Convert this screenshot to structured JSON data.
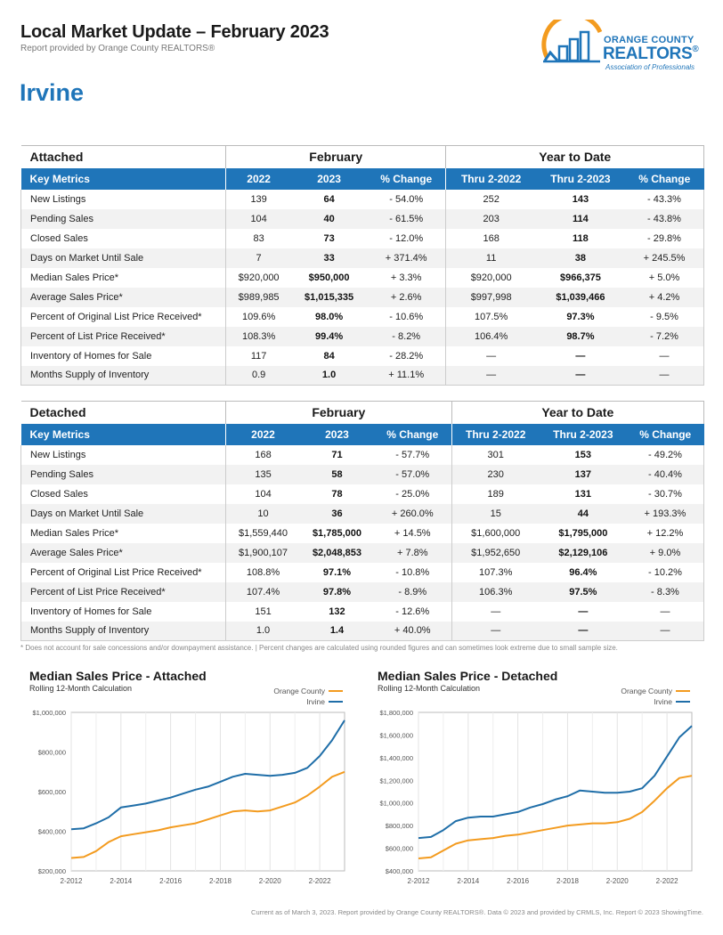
{
  "header": {
    "title": "Local Market Update – February 2023",
    "subtitle": "Report provided by Orange County REALTORS®",
    "city": "Irvine"
  },
  "logo": {
    "line1": "ORANGE COUNTY",
    "line2": "REALTORS",
    "line3": "Association of Professionals",
    "colors": {
      "blue": "#1f75b9",
      "orange": "#f39b1f"
    }
  },
  "tables": [
    {
      "section": "Attached",
      "group_february": "February",
      "group_ytd": "Year to Date",
      "columns": [
        "Key Metrics",
        "2022",
        "2023",
        "% Change",
        "Thru 2-2022",
        "Thru 2-2023",
        "% Change"
      ],
      "rows": [
        [
          "New Listings",
          "139",
          "64",
          "- 54.0%",
          "252",
          "143",
          "- 43.3%"
        ],
        [
          "Pending Sales",
          "104",
          "40",
          "- 61.5%",
          "203",
          "114",
          "- 43.8%"
        ],
        [
          "Closed Sales",
          "83",
          "73",
          "- 12.0%",
          "168",
          "118",
          "- 29.8%"
        ],
        [
          "Days on Market Until Sale",
          "7",
          "33",
          "+ 371.4%",
          "11",
          "38",
          "+ 245.5%"
        ],
        [
          "Median Sales Price*",
          "$920,000",
          "$950,000",
          "+ 3.3%",
          "$920,000",
          "$966,375",
          "+ 5.0%"
        ],
        [
          "Average Sales Price*",
          "$989,985",
          "$1,015,335",
          "+ 2.6%",
          "$997,998",
          "$1,039,466",
          "+ 4.2%"
        ],
        [
          "Percent of Original List Price Received*",
          "109.6%",
          "98.0%",
          "- 10.6%",
          "107.5%",
          "97.3%",
          "- 9.5%"
        ],
        [
          "Percent of List Price Received*",
          "108.3%",
          "99.4%",
          "- 8.2%",
          "106.4%",
          "98.7%",
          "- 7.2%"
        ],
        [
          "Inventory of Homes for Sale",
          "117",
          "84",
          "- 28.2%",
          "—",
          "—",
          "—"
        ],
        [
          "Months Supply of Inventory",
          "0.9",
          "1.0",
          "+ 11.1%",
          "—",
          "—",
          "—"
        ]
      ]
    },
    {
      "section": "Detached",
      "group_february": "February",
      "group_ytd": "Year to Date",
      "columns": [
        "Key Metrics",
        "2022",
        "2023",
        "% Change",
        "Thru 2-2022",
        "Thru 2-2023",
        "% Change"
      ],
      "rows": [
        [
          "New Listings",
          "168",
          "71",
          "- 57.7%",
          "301",
          "153",
          "- 49.2%"
        ],
        [
          "Pending Sales",
          "135",
          "58",
          "- 57.0%",
          "230",
          "137",
          "- 40.4%"
        ],
        [
          "Closed Sales",
          "104",
          "78",
          "- 25.0%",
          "189",
          "131",
          "- 30.7%"
        ],
        [
          "Days on Market Until Sale",
          "10",
          "36",
          "+ 260.0%",
          "15",
          "44",
          "+ 193.3%"
        ],
        [
          "Median Sales Price*",
          "$1,559,440",
          "$1,785,000",
          "+ 14.5%",
          "$1,600,000",
          "$1,795,000",
          "+ 12.2%"
        ],
        [
          "Average Sales Price*",
          "$1,900,107",
          "$2,048,853",
          "+ 7.8%",
          "$1,952,650",
          "$2,129,106",
          "+ 9.0%"
        ],
        [
          "Percent of Original List Price Received*",
          "108.8%",
          "97.1%",
          "- 10.8%",
          "107.3%",
          "96.4%",
          "- 10.2%"
        ],
        [
          "Percent of List Price Received*",
          "107.4%",
          "97.8%",
          "- 8.9%",
          "106.3%",
          "97.5%",
          "- 8.3%"
        ],
        [
          "Inventory of Homes for Sale",
          "151",
          "132",
          "- 12.6%",
          "—",
          "—",
          "—"
        ],
        [
          "Months Supply of Inventory",
          "1.0",
          "1.4",
          "+ 40.0%",
          "—",
          "—",
          "—"
        ]
      ]
    }
  ],
  "footnote": "* Does not account for sale concessions and/or downpayment assistance.  |  Percent changes are calculated using rounded figures and can sometimes look extreme due to small sample size.",
  "footer": "Current as of March 3, 2023. Report provided by Orange County REALTORS®. Data © 2023 and provided by CRMLS, Inc. Report © 2023 ShowingTime.",
  "chart_data": [
    {
      "type": "line",
      "title": "Median Sales Price - Attached",
      "subtitle": "Rolling 12-Month Calculation",
      "x_ticks": [
        "2-2012",
        "2-2014",
        "2-2016",
        "2-2018",
        "2-2020",
        "2-2022"
      ],
      "x": [
        2012.0,
        2012.5,
        2013.0,
        2013.5,
        2014.0,
        2014.5,
        2015.0,
        2015.5,
        2016.0,
        2016.5,
        2017.0,
        2017.5,
        2018.0,
        2018.5,
        2019.0,
        2019.5,
        2020.0,
        2020.5,
        2021.0,
        2021.5,
        2022.0,
        2022.5,
        2023.0
      ],
      "y_ticks": [
        "$200,000",
        "$400,000",
        "$600,000",
        "$800,000",
        "$1,000,000"
      ],
      "ylim": [
        200000,
        1000000
      ],
      "grid": true,
      "legend_position": "top-right",
      "series": [
        {
          "name": "Orange County",
          "color": "#f39b1f",
          "values": [
            265000,
            270000,
            300000,
            345000,
            375000,
            385000,
            395000,
            405000,
            420000,
            430000,
            440000,
            460000,
            480000,
            500000,
            505000,
            500000,
            505000,
            525000,
            545000,
            580000,
            625000,
            675000,
            700000
          ]
        },
        {
          "name": "Irvine",
          "color": "#1f6ea8",
          "values": [
            410000,
            415000,
            440000,
            470000,
            520000,
            530000,
            540000,
            555000,
            570000,
            590000,
            610000,
            625000,
            650000,
            675000,
            690000,
            685000,
            680000,
            685000,
            695000,
            720000,
            780000,
            860000,
            960000
          ]
        }
      ]
    },
    {
      "type": "line",
      "title": "Median Sales Price - Detached",
      "subtitle": "Rolling 12-Month Calculation",
      "x_ticks": [
        "2-2012",
        "2-2014",
        "2-2016",
        "2-2018",
        "2-2020",
        "2-2022"
      ],
      "x": [
        2012.0,
        2012.5,
        2013.0,
        2013.5,
        2014.0,
        2014.5,
        2015.0,
        2015.5,
        2016.0,
        2016.5,
        2017.0,
        2017.5,
        2018.0,
        2018.5,
        2019.0,
        2019.5,
        2020.0,
        2020.5,
        2021.0,
        2021.5,
        2022.0,
        2022.5,
        2023.0
      ],
      "y_ticks": [
        "$400,000",
        "$600,000",
        "$800,000",
        "$1,000,000",
        "$1,200,000",
        "$1,400,000",
        "$1,600,000",
        "$1,800,000"
      ],
      "ylim": [
        400000,
        1800000
      ],
      "grid": true,
      "legend_position": "top-right",
      "series": [
        {
          "name": "Orange County",
          "color": "#f39b1f",
          "values": [
            510000,
            520000,
            580000,
            640000,
            670000,
            680000,
            690000,
            710000,
            720000,
            740000,
            760000,
            780000,
            800000,
            810000,
            820000,
            820000,
            830000,
            860000,
            920000,
            1020000,
            1130000,
            1220000,
            1240000
          ]
        },
        {
          "name": "Irvine",
          "color": "#1f6ea8",
          "values": [
            690000,
            700000,
            760000,
            840000,
            870000,
            880000,
            880000,
            900000,
            920000,
            960000,
            990000,
            1030000,
            1060000,
            1110000,
            1100000,
            1090000,
            1090000,
            1100000,
            1130000,
            1240000,
            1410000,
            1580000,
            1680000
          ]
        }
      ]
    }
  ]
}
